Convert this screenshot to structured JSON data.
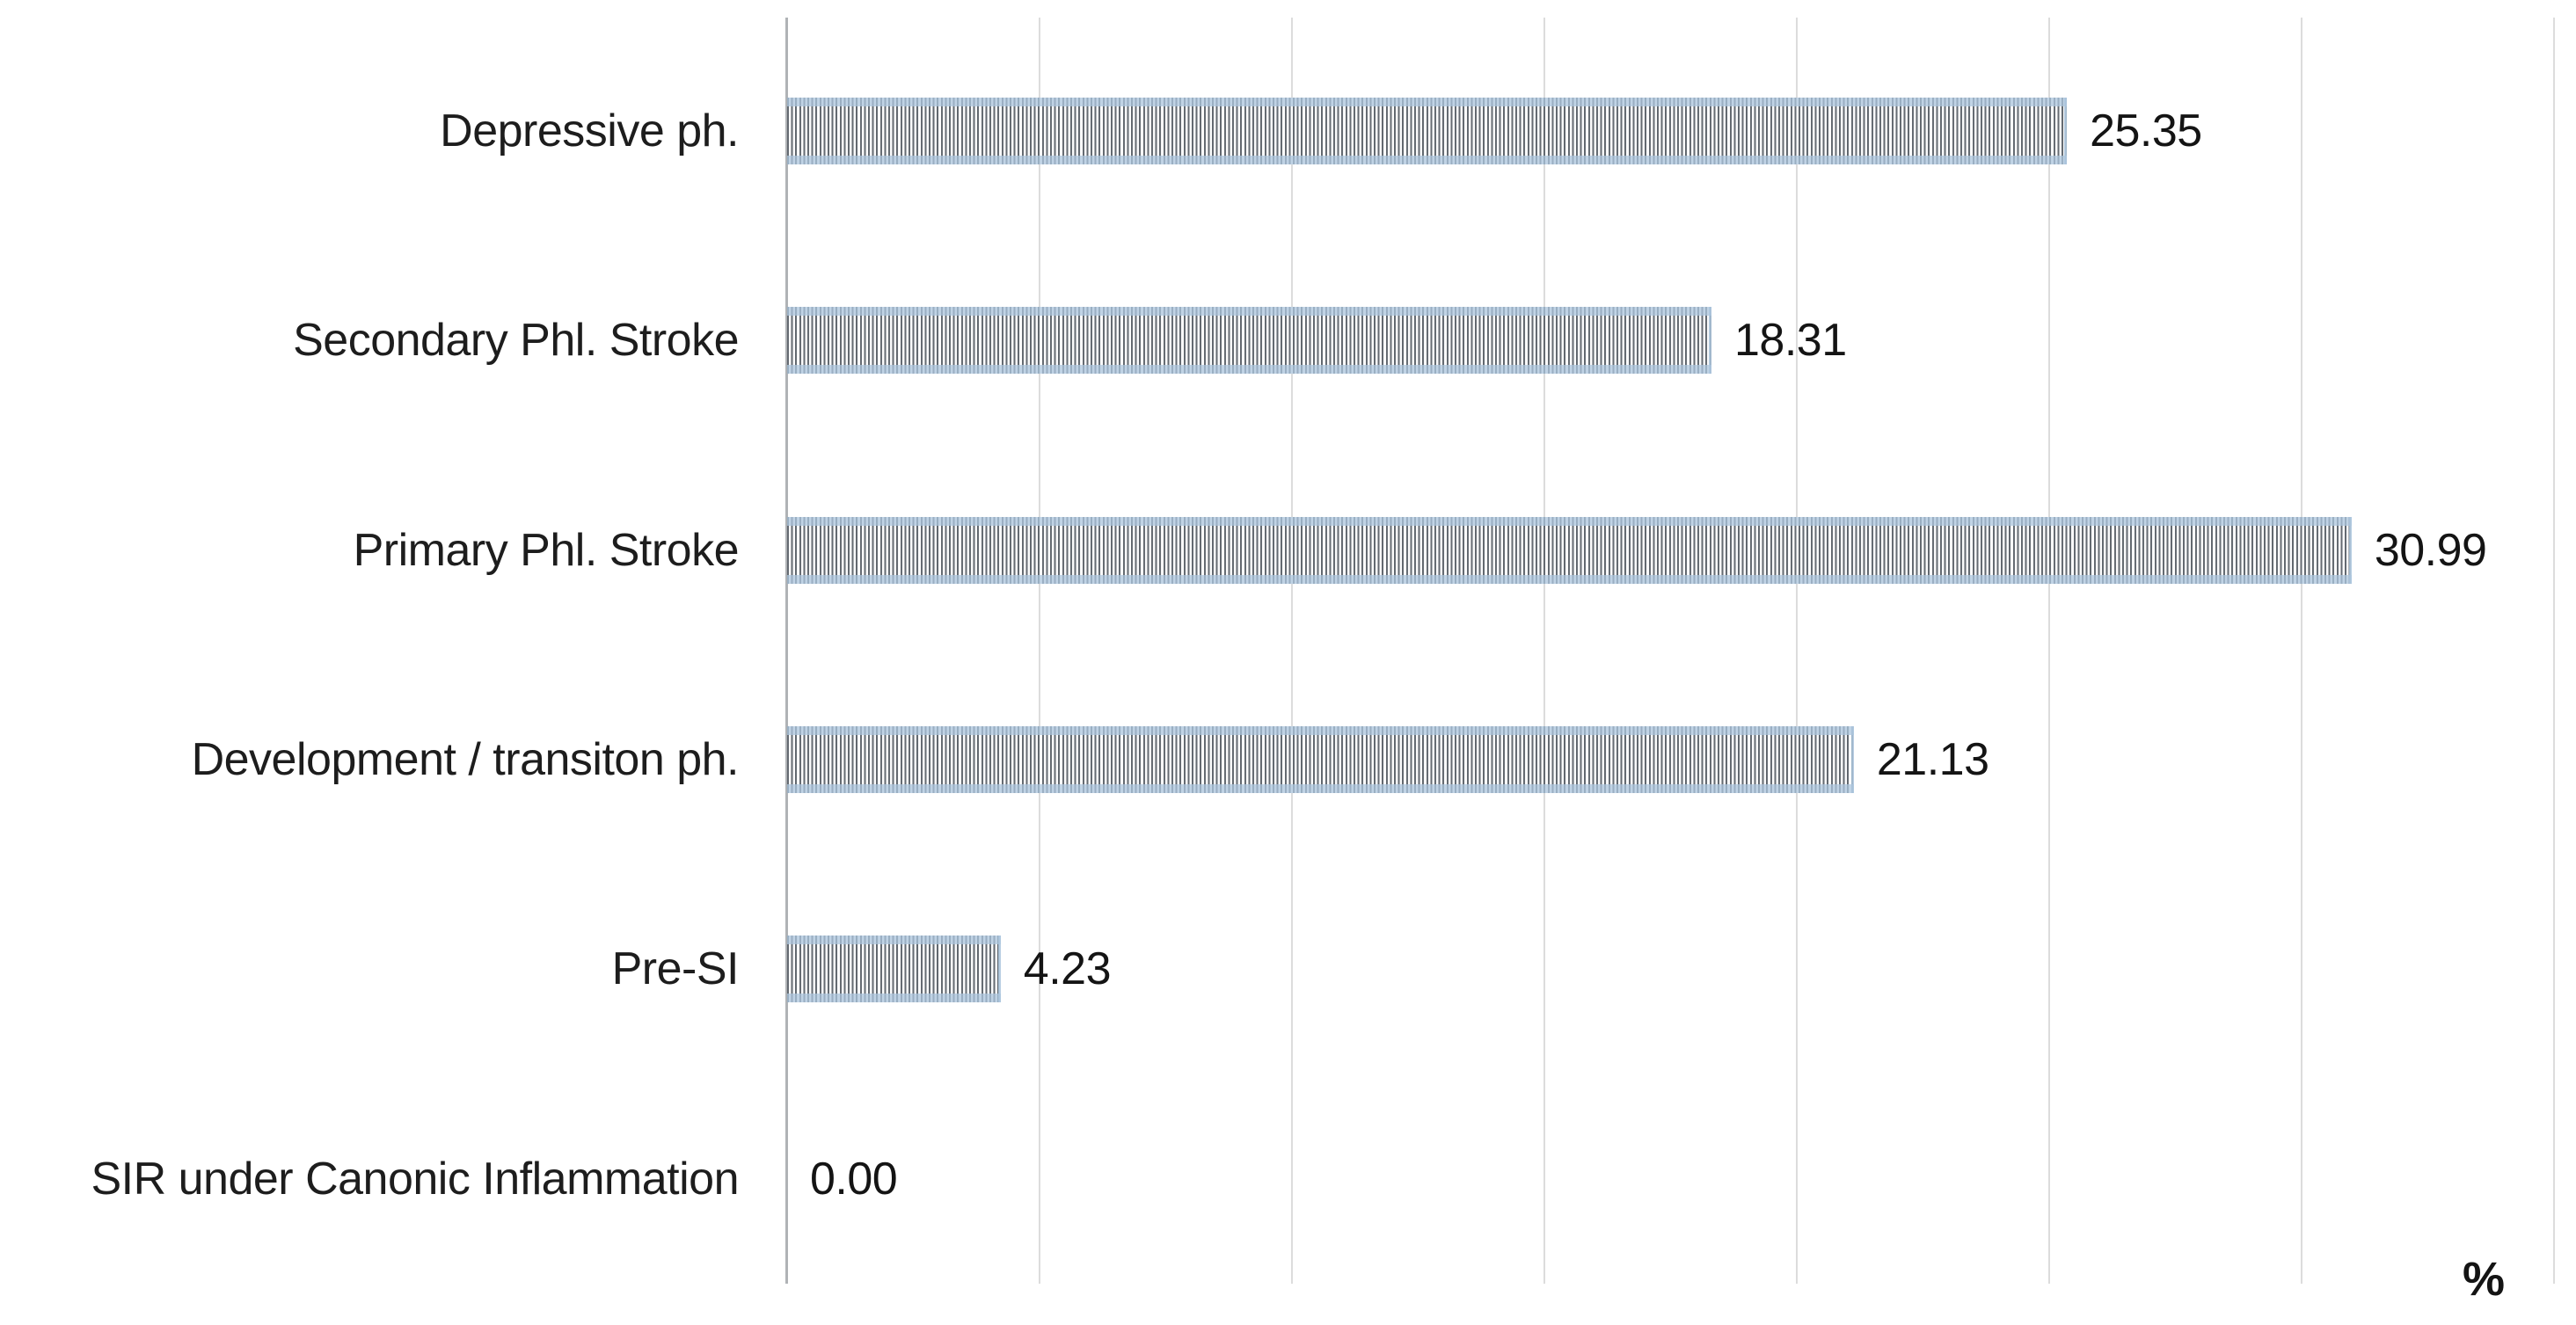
{
  "chart_data": {
    "type": "bar",
    "orientation": "horizontal",
    "title": "",
    "xlabel": "%",
    "ylabel": "",
    "categories": [
      "Depressive ph.",
      "Secondary Phl. Stroke",
      "Primary Phl. Stroke",
      "Development / transiton ph.",
      "Pre-SI",
      "SIR under Canonic Inflammation"
    ],
    "values": [
      25.35,
      18.31,
      30.99,
      21.13,
      4.23,
      0.0
    ],
    "value_labels": [
      "25.35",
      "18.31",
      "30.99",
      "21.13",
      "4.23",
      "0.00"
    ],
    "xlim": [
      0,
      35
    ],
    "gridline_step": 5,
    "grid": true,
    "legend": false,
    "bar_pattern": "vertical-stripes",
    "colors": {
      "bar_stripe_dark": "#5e646b",
      "bar_stripe_light": "#ffffff",
      "bar_edge_blue": "#acc5dd",
      "gridline": "#dcdcdc",
      "axis_line": "#b0b3b6",
      "text": "#1d1d1d",
      "background": "#ffffff"
    }
  }
}
